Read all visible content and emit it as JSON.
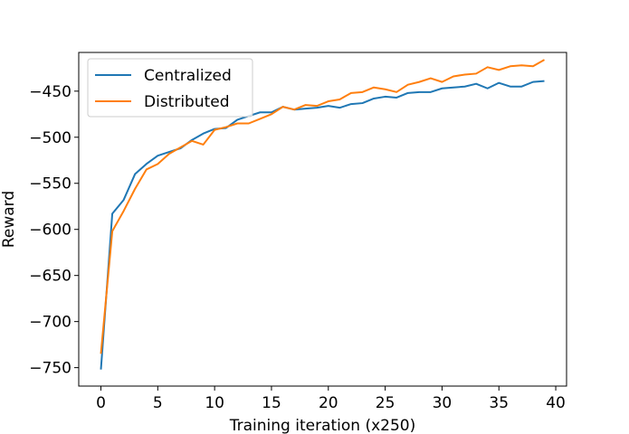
{
  "chart_data": {
    "type": "line",
    "title": "",
    "xlabel": "Training iteration (x250)",
    "ylabel": "Reward",
    "xlim": [
      -1.95,
      40.95
    ],
    "ylim": [
      -770,
      -408
    ],
    "xticks": [
      0,
      5,
      10,
      15,
      20,
      25,
      30,
      35,
      40
    ],
    "yticks": [
      -750,
      -700,
      -650,
      -600,
      -550,
      -500,
      -450
    ],
    "ytick_labels": [
      "−750",
      "−700",
      "−650",
      "−600",
      "−550",
      "−500",
      "−450"
    ],
    "grid": false,
    "legend_position": "upper-left",
    "x": [
      0,
      1,
      2,
      3,
      4,
      5,
      6,
      7,
      8,
      9,
      10,
      11,
      12,
      13,
      14,
      15,
      16,
      17,
      18,
      19,
      20,
      21,
      22,
      23,
      24,
      25,
      26,
      27,
      28,
      29,
      30,
      31,
      32,
      33,
      34,
      35,
      36,
      37,
      38,
      39
    ],
    "series": [
      {
        "name": "Centralized",
        "color": "#1f77b4",
        "values": [
          -752,
          -583,
          -568,
          -540,
          -529,
          -520,
          -516,
          -512,
          -503,
          -496,
          -491,
          -490,
          -481,
          -477,
          -473,
          -473,
          -467,
          -470,
          -469,
          -468,
          -466,
          -468,
          -464,
          -463,
          -458,
          -456,
          -457,
          -452,
          -451,
          -451,
          -447,
          -446,
          -445,
          -442,
          -447,
          -441,
          -445,
          -445,
          -440,
          -439
        ]
      },
      {
        "name": "Distributed",
        "color": "#ff7f0e",
        "values": [
          -735,
          -602,
          -580,
          -556,
          -535,
          -529,
          -518,
          -511,
          -504,
          -508,
          -492,
          -489,
          -485,
          -485,
          -480,
          -475,
          -467,
          -470,
          -465,
          -466,
          -461,
          -459,
          -452,
          -451,
          -446,
          -448,
          -451,
          -443,
          -440,
          -436,
          -440,
          -434,
          -432,
          -431,
          -424,
          -427,
          -423,
          -422,
          -423,
          -416
        ]
      }
    ]
  }
}
